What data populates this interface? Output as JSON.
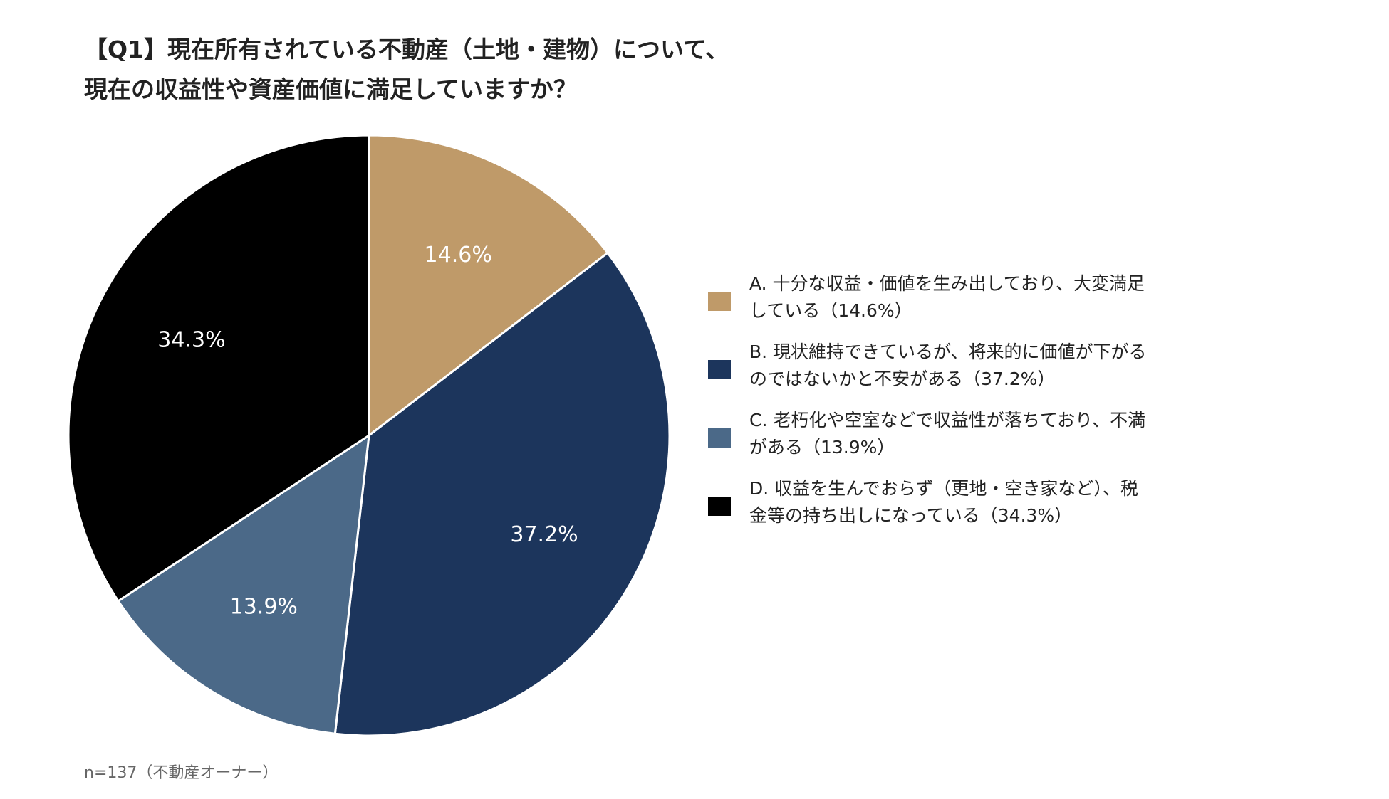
{
  "title": {
    "line1": "【Q1】現在所有されている不動産（土地・建物）について、",
    "line2": "現在の収益性や資産価値に満足していますか？"
  },
  "chart_data": {
    "type": "pie",
    "categories": [
      "A",
      "B",
      "C",
      "D"
    ],
    "values": [
      14.6,
      37.2,
      13.9,
      34.3
    ],
    "unit": "%",
    "data_labels": [
      "14.6%",
      "37.2%",
      "13.9%",
      "34.3%"
    ],
    "colors": [
      "#BF9A69",
      "#1C355C",
      "#4B6988",
      "#000000"
    ],
    "start_angle_deg": 0,
    "direction": "clockwise",
    "legend_position": "right",
    "legend": [
      {
        "line1": "A. 十分な収益・価値を生み出しており、大変満足",
        "line2": "している（14.6%）"
      },
      {
        "line1": "B. 現状維持できているが、将来的に価値が下がる",
        "line2": "のではないかと不安がある（37.2%）"
      },
      {
        "line1": "C. 老朽化や空室などで収益性が落ちており、不満",
        "line2": "がある（13.9%）"
      },
      {
        "line1": "D. 収益を生んでおらず（更地・空き家など）、税",
        "line2": "金等の持ち出しになっている（34.3%）"
      }
    ]
  },
  "footnote": "n=137（不動産オーナー）"
}
